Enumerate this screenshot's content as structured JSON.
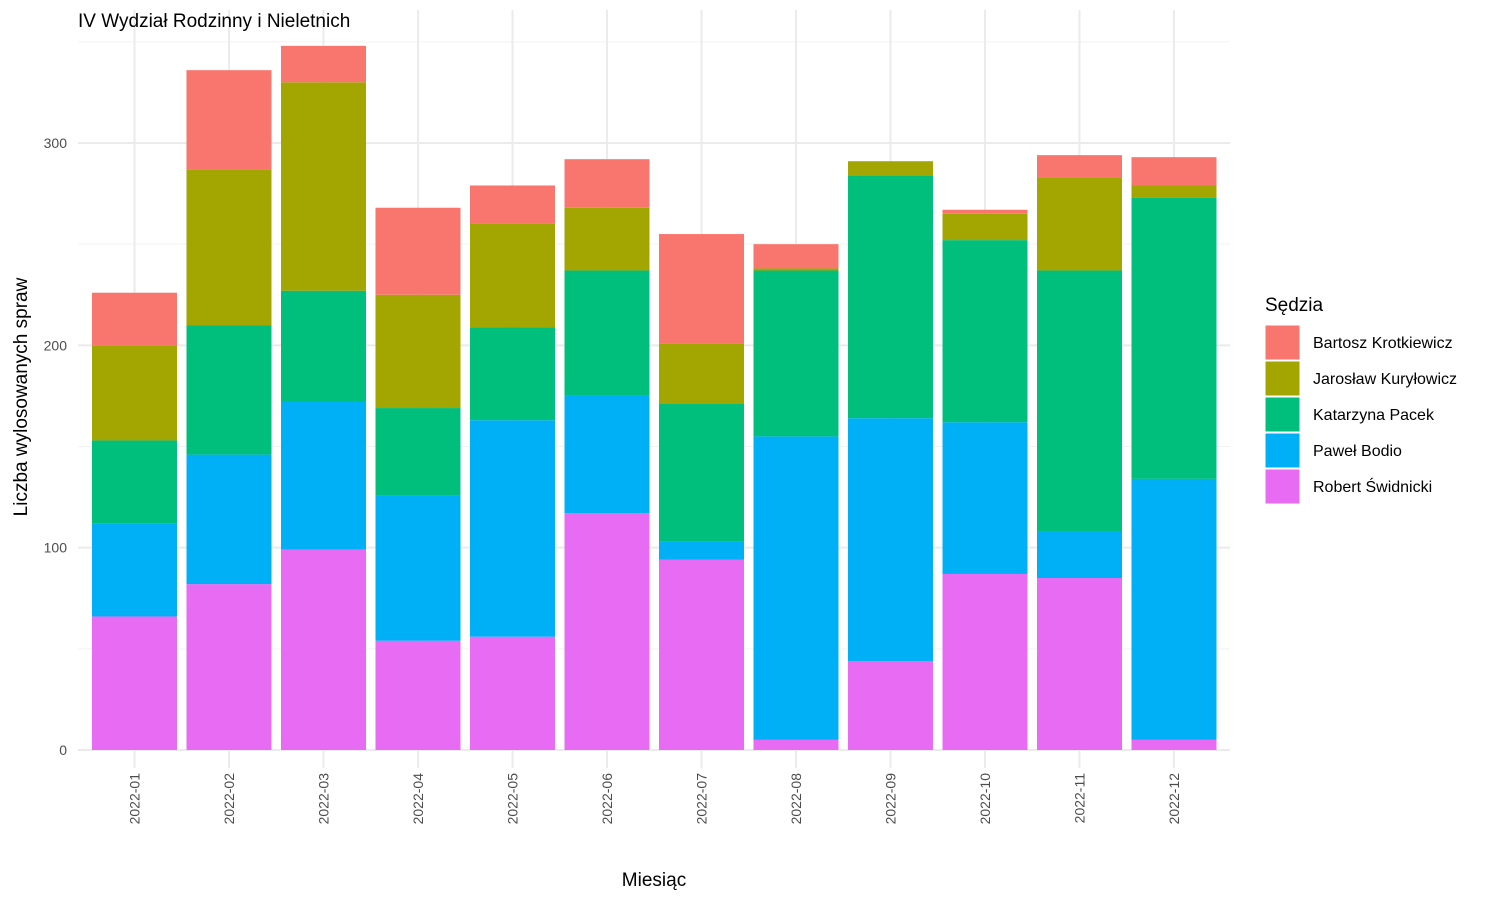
{
  "chart_data": {
    "type": "bar",
    "stacked": true,
    "title": "IV Wydział Rodzinny i Nieletnich",
    "xlabel": "Miesiąc",
    "ylabel": "Liczba wylosowanych spraw",
    "ylim": [
      0,
      350
    ],
    "yticks": [
      0,
      100,
      200,
      300
    ],
    "grid": true,
    "legend_title": "Sędzia",
    "legend_position": "right",
    "categories": [
      "2022-01",
      "2022-02",
      "2022-03",
      "2022-04",
      "2022-05",
      "2022-06",
      "2022-07",
      "2022-08",
      "2022-09",
      "2022-10",
      "2022-11",
      "2022-12"
    ],
    "series": [
      {
        "name": "Bartosz Krotkiewicz",
        "color": "#F8766D",
        "values": [
          26,
          49,
          18,
          43,
          19,
          24,
          54,
          12,
          0,
          2,
          11,
          14
        ]
      },
      {
        "name": "Jarosław Kuryłowicz",
        "color": "#A3A500",
        "values": [
          47,
          77,
          103,
          56,
          51,
          31,
          30,
          1,
          7,
          13,
          46,
          6
        ]
      },
      {
        "name": "Katarzyna Pacek",
        "color": "#00BF7D",
        "values": [
          41,
          64,
          55,
          43,
          46,
          62,
          68,
          82,
          120,
          90,
          129,
          139
        ]
      },
      {
        "name": "Paweł Bodio",
        "color": "#00B0F6",
        "values": [
          46,
          64,
          73,
          72,
          107,
          58,
          9,
          150,
          120,
          75,
          23,
          129
        ]
      },
      {
        "name": "Robert Świdnicki",
        "color": "#E76BF3",
        "values": [
          66,
          82,
          99,
          54,
          56,
          117,
          94,
          5,
          44,
          87,
          85,
          5
        ]
      }
    ]
  }
}
